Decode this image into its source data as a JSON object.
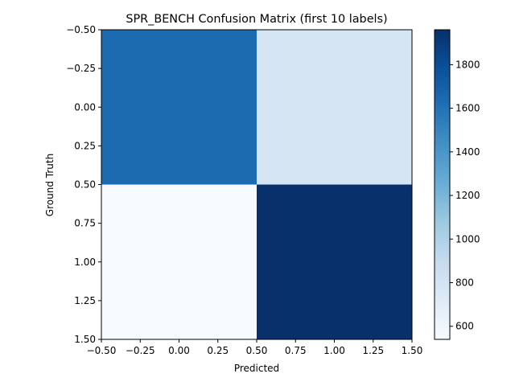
{
  "chart_data": {
    "type": "heatmap",
    "title": "SPR_BENCH Confusion Matrix (first 10 labels)",
    "xlabel": "Predicted",
    "ylabel": "Ground Truth",
    "xlim": [
      -0.5,
      1.5
    ],
    "ylim": [
      1.5,
      -0.5
    ],
    "x_ticks": [
      "−0.50",
      "−0.25",
      "0.00",
      "0.25",
      "0.50",
      "0.75",
      "1.00",
      "1.25",
      "1.50"
    ],
    "y_ticks": [
      "−0.50",
      "−0.25",
      "0.00",
      "0.25",
      "0.50",
      "0.75",
      "1.00",
      "1.25",
      "1.50"
    ],
    "matrix": [
      [
        1640,
        780
      ],
      [
        540,
        1960
      ]
    ],
    "colormap": "Blues",
    "colorbar": {
      "range": [
        540,
        1960
      ],
      "ticks": [
        "600",
        "800",
        "1000",
        "1200",
        "1400",
        "1600",
        "1800"
      ],
      "tick_values": [
        600,
        800,
        1000,
        1200,
        1400,
        1600,
        1800
      ]
    },
    "grid": false
  }
}
